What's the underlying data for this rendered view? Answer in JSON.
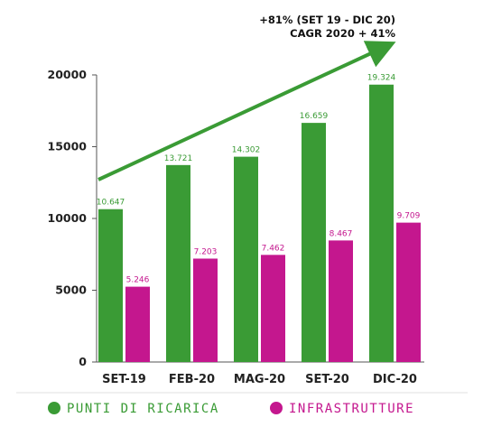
{
  "chart_data": {
    "type": "bar",
    "categories": [
      "SET-19",
      "FEB-20",
      "MAG-20",
      "SET-20",
      "DIC-20"
    ],
    "series": [
      {
        "name": "PUNTI DI RICARICA",
        "values": [
          10647,
          13721,
          14302,
          16659,
          19324
        ],
        "labels": [
          "10.647",
          "13.721",
          "14.302",
          "16.659",
          "19.324"
        ],
        "color": "#3a9b35"
      },
      {
        "name": "INFRASTRUTTURE",
        "values": [
          5246,
          7203,
          7462,
          8467,
          9709
        ],
        "labels": [
          "5.246",
          "7.203",
          "7.462",
          "8.467",
          "9.709"
        ],
        "color": "#c4178e"
      }
    ],
    "yticks": [
      "0",
      "5000",
      "10000",
      "15000",
      "20000"
    ],
    "ylim": [
      0,
      20000
    ],
    "annotation": [
      "+81% (SET 19 - DIC 20)",
      "CAGR 2020 + 41%"
    ],
    "trend_arrow_color": "#3a9b35",
    "legend_position": "bottom",
    "grid": false
  }
}
